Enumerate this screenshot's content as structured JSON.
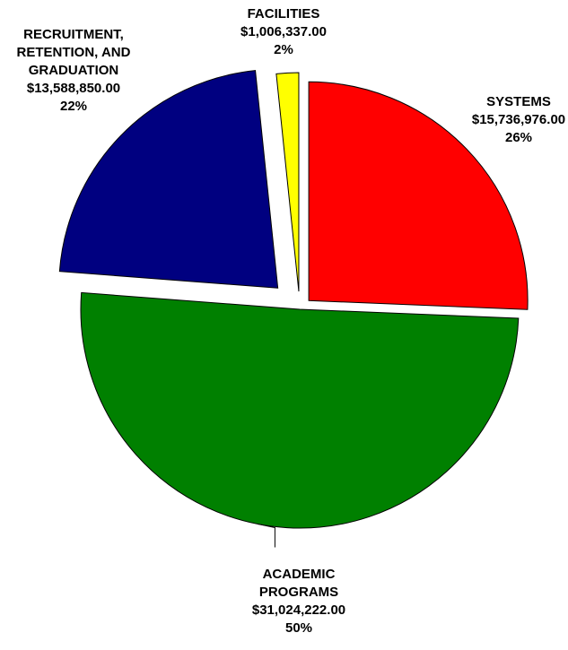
{
  "chart_data": {
    "type": "pie",
    "title": "",
    "slices": [
      {
        "label": [
          "SYSTEMS"
        ],
        "amount": "$15,736,976.00",
        "percent": "26%",
        "value": 15736976.0,
        "color": "#ff0000"
      },
      {
        "label": [
          "ACADEMIC",
          "PROGRAMS"
        ],
        "amount": "$31,024,222.00",
        "percent": "50%",
        "value": 31024222.0,
        "color": "#008000"
      },
      {
        "label": [
          "RECRUITMENT,",
          "RETENTION, AND",
          "GRADUATION"
        ],
        "amount": "$13,588,850.00",
        "percent": "22%",
        "value": 13588850.0,
        "color": "#000080"
      },
      {
        "label": [
          "FACILITIES"
        ],
        "amount": "$1,006,337.00",
        "percent": "2%",
        "value": 1006337.0,
        "color": "#ffff00"
      }
    ],
    "legend": "none"
  }
}
